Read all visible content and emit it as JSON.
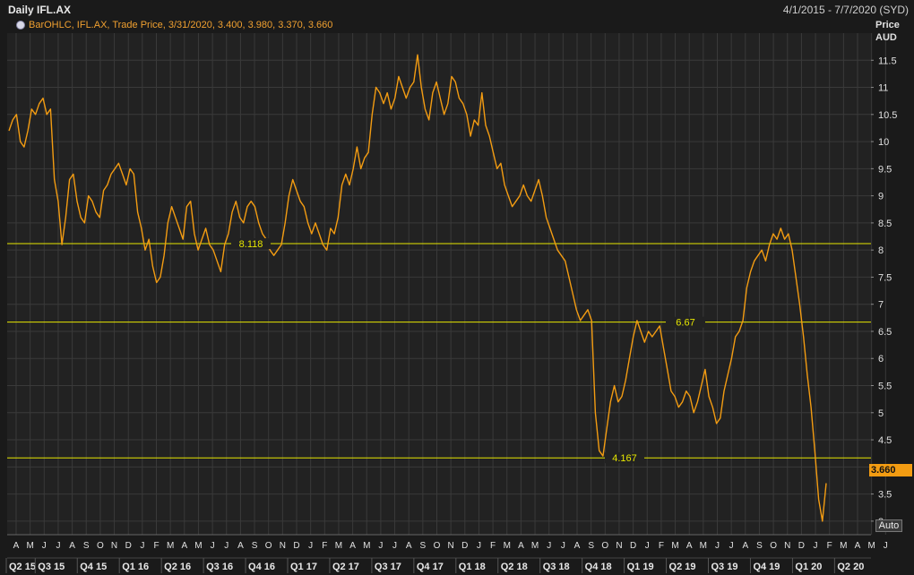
{
  "header": {
    "title": "Daily IFL.AX",
    "date_range": "4/1/2015 - 7/7/2020 (SYD)"
  },
  "legend": {
    "text": "BarOHLC, IFL.AX, Trade Price, 3/31/2020, 3.400, 3.980, 3.370, 3.660"
  },
  "axis": {
    "y_label_line1": "Price",
    "y_label_line2": "AUD",
    "last_price": "3.660",
    "auto_button": "Auto"
  },
  "colors": {
    "background": "#1a1a1a",
    "series": "#f39c12",
    "level_lines": "#e6e600",
    "grid": "#3a3a3a"
  },
  "chart_data": {
    "type": "line",
    "title": "Daily IFL.AX",
    "ylabel": "Price AUD",
    "ylim": [
      2.75,
      12.0
    ],
    "yticks": [
      3,
      3.5,
      4,
      4.5,
      5,
      5.5,
      6,
      6.5,
      7,
      7.5,
      8,
      8.5,
      9,
      9.5,
      10,
      10.5,
      11,
      11.5
    ],
    "ytick_labels": [
      "3",
      "3.5",
      "4",
      "4.5",
      "5",
      "5.5",
      "6",
      "6.5",
      "7",
      "7.5",
      "8",
      "8.5",
      "9",
      "9.5",
      "10",
      "10.5",
      "11",
      "11.5"
    ],
    "months": [
      "A",
      "M",
      "J",
      "J",
      "A",
      "S",
      "O",
      "N",
      "D",
      "J",
      "F",
      "M",
      "A",
      "M",
      "J",
      "J",
      "A",
      "S",
      "O",
      "N",
      "D",
      "J",
      "F",
      "M",
      "A",
      "M",
      "J",
      "J",
      "A",
      "S",
      "O",
      "N",
      "D",
      "J",
      "F",
      "M",
      "A",
      "M",
      "J",
      "J",
      "A",
      "S",
      "O",
      "N",
      "D",
      "J",
      "F",
      "M",
      "A",
      "M",
      "J",
      "J",
      "A",
      "S",
      "O",
      "N",
      "D",
      "J",
      "F",
      "M",
      "A",
      "M",
      "J"
    ],
    "quarters": [
      "Q2 15",
      "Q3 15",
      "Q4 15",
      "Q1 16",
      "Q2 16",
      "Q3 16",
      "Q4 16",
      "Q1 17",
      "Q2 17",
      "Q3 17",
      "Q4 17",
      "Q1 18",
      "Q2 18",
      "Q3 18",
      "Q4 18",
      "Q1 19",
      "Q2 19",
      "Q3 19",
      "Q4 19",
      "Q1 20",
      "Q2 20"
    ],
    "horizontal_levels": [
      {
        "value": 8.118,
        "label": "8.118"
      },
      {
        "value": 6.67,
        "label": "6.67"
      },
      {
        "value": 4.167,
        "label": "4.167"
      }
    ],
    "series": [
      {
        "values": [
          10.2,
          10.4,
          10.5,
          10.0,
          9.9,
          10.2,
          10.6,
          10.5,
          10.7,
          10.8,
          10.5,
          10.6,
          9.3,
          8.9,
          8.1,
          8.6,
          9.3,
          9.4,
          8.9,
          8.6,
          8.5,
          9.0,
          8.9,
          8.7,
          8.6,
          9.1,
          9.2,
          9.4,
          9.5,
          9.6,
          9.4,
          9.2,
          9.5,
          9.4,
          8.7,
          8.4,
          8.0,
          8.2,
          7.7,
          7.4,
          7.5,
          7.9,
          8.5,
          8.8,
          8.6,
          8.4,
          8.2,
          8.8,
          8.9,
          8.3,
          8.0,
          8.2,
          8.4,
          8.1,
          8.0,
          7.8,
          7.6,
          8.1,
          8.3,
          8.7,
          8.9,
          8.6,
          8.5,
          8.8,
          8.9,
          8.8,
          8.5,
          8.3,
          8.2,
          8.0,
          7.9,
          8.0,
          8.1,
          8.5,
          9.0,
          9.3,
          9.1,
          8.9,
          8.8,
          8.5,
          8.3,
          8.5,
          8.3,
          8.1,
          8.0,
          8.4,
          8.3,
          8.6,
          9.2,
          9.4,
          9.2,
          9.5,
          9.9,
          9.5,
          9.7,
          9.8,
          10.5,
          11.0,
          10.9,
          10.7,
          10.9,
          10.6,
          10.8,
          11.2,
          11.0,
          10.8,
          11.0,
          11.1,
          11.6,
          11.0,
          10.6,
          10.4,
          10.9,
          11.1,
          10.8,
          10.5,
          10.7,
          11.2,
          11.1,
          10.8,
          10.7,
          10.5,
          10.1,
          10.4,
          10.3,
          10.9,
          10.3,
          10.1,
          9.8,
          9.5,
          9.6,
          9.2,
          9.0,
          8.8,
          8.9,
          9.0,
          9.2,
          9.0,
          8.9,
          9.1,
          9.3,
          9.0,
          8.6,
          8.4,
          8.2,
          8.0,
          7.9,
          7.8,
          7.5,
          7.2,
          6.9,
          6.7,
          6.8,
          6.9,
          6.7,
          5.0,
          4.3,
          4.2,
          4.7,
          5.2,
          5.5,
          5.2,
          5.3,
          5.6,
          6.0,
          6.4,
          6.7,
          6.5,
          6.3,
          6.5,
          6.4,
          6.5,
          6.6,
          6.2,
          5.8,
          5.4,
          5.3,
          5.1,
          5.2,
          5.4,
          5.3,
          5.0,
          5.2,
          5.5,
          5.8,
          5.3,
          5.1,
          4.8,
          4.9,
          5.4,
          5.7,
          6.0,
          6.4,
          6.5,
          6.7,
          7.3,
          7.6,
          7.8,
          7.9,
          8.0,
          7.8,
          8.1,
          8.3,
          8.2,
          8.4,
          8.2,
          8.3,
          8.0,
          7.5,
          7.0,
          6.4,
          5.7,
          5.1,
          4.3,
          3.4,
          3.0,
          3.7
        ]
      }
    ]
  }
}
